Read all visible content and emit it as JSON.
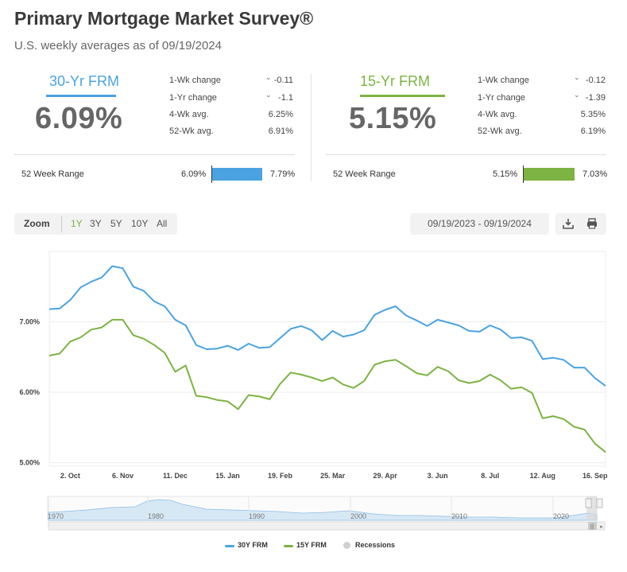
{
  "header": {
    "title": "Primary Mortgage Market Survey®",
    "subtitle": "U.S. weekly averages as of 09/19/2024"
  },
  "rates": [
    {
      "label": "30-Yr FRM",
      "value": "6.09%",
      "color": "#4aa3e0",
      "stats": [
        {
          "label": "1-Wk change",
          "value": "-0.11",
          "arrow": true
        },
        {
          "label": "1-Yr change",
          "value": "-1.1",
          "arrow": true
        },
        {
          "label": "4-Wk avg.",
          "value": "6.25%",
          "arrow": false
        },
        {
          "label": "52-Wk avg.",
          "value": "6.91%",
          "arrow": false
        }
      ],
      "range": {
        "label": "52 Week Range",
        "low": "6.09%",
        "high": "7.79%"
      }
    },
    {
      "label": "15-Yr FRM",
      "value": "5.15%",
      "color": "#7cb342",
      "stats": [
        {
          "label": "1-Wk change",
          "value": "-0.12",
          "arrow": true
        },
        {
          "label": "1-Yr change",
          "value": "-1.39",
          "arrow": true
        },
        {
          "label": "4-Wk avg.",
          "value": "5.35%",
          "arrow": false
        },
        {
          "label": "52-Wk avg.",
          "value": "6.19%",
          "arrow": false
        }
      ],
      "range": {
        "label": "52 Week Range",
        "low": "5.15%",
        "high": "7.03%"
      }
    }
  ],
  "toolbar": {
    "zoom_label": "Zoom",
    "zoom_options": [
      "1Y",
      "3Y",
      "5Y",
      "10Y",
      "All"
    ],
    "zoom_selected": "1Y",
    "date_range": "09/19/2023 - 09/19/2024",
    "download_icon": "download-icon",
    "print_icon": "print-icon"
  },
  "chart_data": {
    "type": "line",
    "title": "",
    "ylim": [
      4.95,
      8.0
    ],
    "yticks": [
      5.0,
      6.0,
      7.0
    ],
    "ytick_labels": [
      "5.00%",
      "6.00%",
      "7.00%"
    ],
    "xtick_labels": [
      "2. Oct",
      "6. Nov",
      "11. Dec",
      "15. Jan",
      "19. Feb",
      "25. Mar",
      "29. Apr",
      "3. Jun",
      "8. Jul",
      "12. Aug",
      "16. Sep"
    ],
    "xtick_index": [
      2,
      7,
      12,
      17,
      22,
      27,
      32,
      37,
      42,
      47,
      52
    ],
    "series": [
      {
        "name": "30Y FRM",
        "color": "#4aa3e0",
        "values": [
          7.18,
          7.19,
          7.31,
          7.49,
          7.57,
          7.63,
          7.79,
          7.76,
          7.5,
          7.44,
          7.29,
          7.22,
          7.03,
          6.95,
          6.67,
          6.61,
          6.62,
          6.66,
          6.6,
          6.69,
          6.63,
          6.64,
          6.77,
          6.9,
          6.94,
          6.88,
          6.74,
          6.87,
          6.79,
          6.82,
          6.88,
          7.1,
          7.17,
          7.22,
          7.09,
          7.02,
          6.94,
          7.03,
          6.99,
          6.95,
          6.87,
          6.86,
          6.95,
          6.89,
          6.77,
          6.78,
          6.73,
          6.47,
          6.49,
          6.46,
          6.35,
          6.35,
          6.2,
          6.09
        ]
      },
      {
        "name": "15Y FRM",
        "color": "#7cb342",
        "values": [
          6.52,
          6.55,
          6.72,
          6.78,
          6.89,
          6.92,
          7.03,
          7.03,
          6.81,
          6.76,
          6.67,
          6.56,
          6.29,
          6.38,
          5.95,
          5.93,
          5.89,
          5.87,
          5.76,
          5.96,
          5.94,
          5.9,
          6.12,
          6.28,
          6.25,
          6.21,
          6.16,
          6.21,
          6.11,
          6.06,
          6.16,
          6.39,
          6.44,
          6.46,
          6.37,
          6.27,
          6.24,
          6.36,
          6.3,
          6.17,
          6.13,
          6.16,
          6.25,
          6.17,
          6.05,
          6.07,
          5.99,
          5.63,
          5.66,
          5.62,
          5.51,
          5.47,
          5.27,
          5.15
        ]
      }
    ],
    "legend": {
      "position": "bottom",
      "items": [
        "30Y FRM",
        "15Y FRM",
        "Recessions"
      ]
    },
    "grid": true
  },
  "navigator": {
    "labels": [
      "1970",
      "1980",
      "1990",
      "2000",
      "2010",
      "2020"
    ]
  }
}
